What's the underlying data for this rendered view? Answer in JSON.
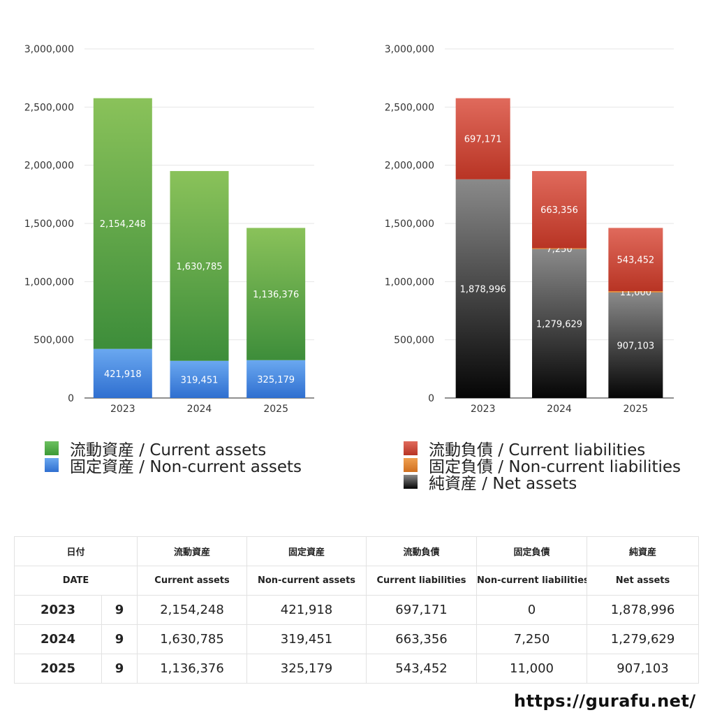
{
  "charts": [
    {
      "type": "bar",
      "stacked": true,
      "categories": [
        "2023",
        "2024",
        "2025"
      ],
      "ylim": [
        0,
        3000000
      ],
      "y_ticks": [
        "0",
        "500,000",
        "1,000,000",
        "1,500,000",
        "2,000,000",
        "2,500,000",
        "3,000,000"
      ],
      "series": [
        {
          "name": "固定資産 / Non-current assets",
          "values": [
            421918,
            319451,
            325179
          ],
          "labels": [
            "421,918",
            "319,451",
            "325,179"
          ],
          "color_top": "#6aa8f0",
          "color_bottom": "#2f6fd0"
        },
        {
          "name": "流動資産 / Current assets",
          "values": [
            2154248,
            1630785,
            1136376
          ],
          "labels": [
            "2,154,248",
            "1,630,785",
            "1,136,376"
          ],
          "color_top": "#8ac25a",
          "color_bottom": "#3d8d3a"
        }
      ],
      "legend": [
        "流動資産 / Current assets",
        "固定資産 / Non-current assets"
      ],
      "legend_colors": [
        "#4aa640",
        "#3d7fe0"
      ]
    },
    {
      "type": "bar",
      "stacked": true,
      "categories": [
        "2023",
        "2024",
        "2025"
      ],
      "ylim": [
        0,
        3000000
      ],
      "y_ticks": [
        "0",
        "500,000",
        "1,000,000",
        "1,500,000",
        "2,000,000",
        "2,500,000",
        "3,000,000"
      ],
      "series": [
        {
          "name": "純資産 / Net assets",
          "values": [
            1878996,
            1279629,
            907103
          ],
          "labels": [
            "1,878,996",
            "1,279,629",
            "907,103"
          ],
          "color_top": "#8a8a8a",
          "color_bottom": "#050505"
        },
        {
          "name": "固定負債 / Non-current liabilities",
          "values": [
            0,
            7250,
            11000
          ],
          "labels": [
            "",
            "7,250",
            "11,000"
          ],
          "color_top": "#f0a050",
          "color_bottom": "#d07020"
        },
        {
          "name": "流動負債 / Current liabilities",
          "values": [
            697171,
            663356,
            543452
          ],
          "labels": [
            "697,171",
            "663,356",
            "543,452"
          ],
          "color_top": "#e06a5c",
          "color_bottom": "#b83424"
        }
      ],
      "legend": [
        "流動負債 / Current liabilities",
        "固定負債 / Non-current liabilities",
        "純資産 / Net assets"
      ],
      "legend_colors": [
        "#d44a3a",
        "#e8883a",
        "#222222"
      ]
    }
  ],
  "table": {
    "header": [
      "日付",
      "流動資産",
      "固定資産",
      "流動負債",
      "固定負債",
      "純資産"
    ],
    "header_en": [
      "DATE",
      "Current assets",
      "Non-current assets",
      "Current liabilities",
      "Non-current liabilities",
      "Net assets"
    ],
    "rows": [
      {
        "year": "2023",
        "month": "9",
        "values": [
          "2,154,248",
          "421,918",
          "697,171",
          "0",
          "1,878,996"
        ]
      },
      {
        "year": "2024",
        "month": "9",
        "values": [
          "1,630,785",
          "319,451",
          "663,356",
          "7,250",
          "1,279,629"
        ]
      },
      {
        "year": "2025",
        "month": "9",
        "values": [
          "1,136,376",
          "325,179",
          "543,452",
          "11,000",
          "907,103"
        ]
      }
    ]
  },
  "site": "https://gurafu.net/"
}
